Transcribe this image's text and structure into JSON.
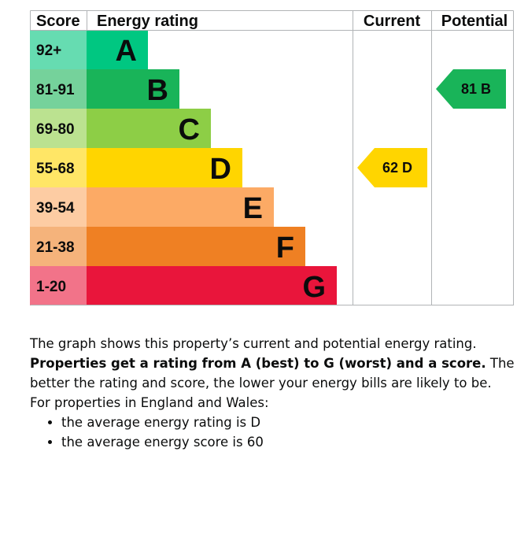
{
  "chart_data": {
    "type": "table",
    "headers": {
      "score": "Score",
      "rating": "Energy rating",
      "current": "Current",
      "potential": "Potential"
    },
    "bands": [
      {
        "letter": "A",
        "score": "92+",
        "color": "#00c781",
        "score_bg": "#66dcb1"
      },
      {
        "letter": "B",
        "score": "81-91",
        "color": "#19b459",
        "score_bg": "#75d29b"
      },
      {
        "letter": "C",
        "score": "69-80",
        "color": "#8dce46",
        "score_bg": "#bbe290"
      },
      {
        "letter": "D",
        "score": "55-68",
        "color": "#ffd500",
        "score_bg": "#ffe666"
      },
      {
        "letter": "E",
        "score": "39-54",
        "color": "#fcaa65",
        "score_bg": "#fdcca3"
      },
      {
        "letter": "F",
        "score": "21-38",
        "color": "#ef8023",
        "score_bg": "#f5b37b"
      },
      {
        "letter": "G",
        "score": "1-20",
        "color": "#e9153b",
        "score_bg": "#f27389"
      }
    ],
    "current": {
      "score": 62,
      "band": "D",
      "label": "62  D",
      "color": "#ffd500"
    },
    "potential": {
      "score": 81,
      "band": "B",
      "label": "81  B",
      "color": "#19b459"
    }
  },
  "text": {
    "para1": "The graph shows this property’s current and potential energy rating.",
    "para2_bold": "Properties get a rating from A (best) to G (worst) and a score.",
    "para2_rest": " The better the rating and score, the lower your energy bills are likely to be.",
    "para3": "For properties in England and Wales:",
    "bullets": [
      "the average energy rating is D",
      "the average energy score is 60"
    ]
  }
}
